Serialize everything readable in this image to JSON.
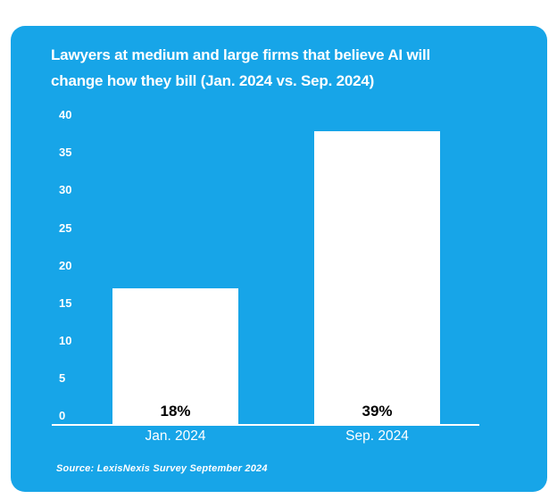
{
  "card": {
    "background_color": "#17a5e8",
    "title_lines": [
      "Lawyers at medium and large firms that believe AI will",
      "change how they bill (Jan. 2024 vs. Sep. 2024)"
    ]
  },
  "chart_data": {
    "type": "bar",
    "title": "Lawyers at medium and large firms that believe AI will change how they bill (Jan. 2024 vs. Sep. 2024)",
    "categories": [
      "Jan. 2024",
      "Sep. 2024"
    ],
    "values": [
      18,
      39
    ],
    "bar_labels": [
      "18%",
      "39%"
    ],
    "ylim": [
      0,
      40
    ],
    "ytick_step": 5,
    "ytick_labels": [
      "40",
      "35",
      "30",
      "25",
      "20",
      "15",
      "10",
      "5",
      "0"
    ],
    "xlabel": "",
    "ylabel": "",
    "grid": false,
    "legend": false,
    "bar_color": "#ffffff",
    "bar_label_color": "#000000",
    "axis_text_color": "#ffffff",
    "source": "Source: LexisNexis Survey September 2024"
  }
}
